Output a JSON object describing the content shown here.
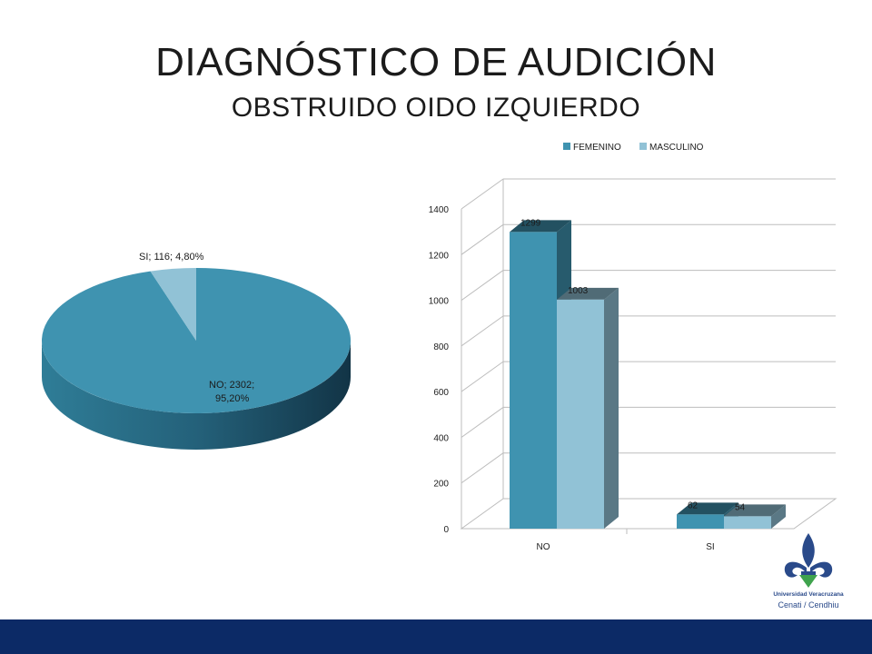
{
  "slide": {
    "title": "DIAGNÓSTICO DE AUDICIÓN",
    "subtitle": "OBSTRUIDO OIDO IZQUIERDO",
    "logo_text_1": "Universidad Veracruzana",
    "logo_text_2": "Cenati / Cendhiu"
  },
  "chart_data": [
    {
      "type": "pie",
      "slices": [
        {
          "label": "NO",
          "value": 2302,
          "percent": "95,20%",
          "color": "#3f93b0"
        },
        {
          "label": "SI",
          "value": 116,
          "percent": "4,80%",
          "color": "#91c2d6"
        }
      ],
      "data_labels": [
        "NO; 2302;",
        "95,20%",
        "SI; 116; 4,80%"
      ]
    },
    {
      "type": "bar",
      "categories": [
        "NO",
        "SI"
      ],
      "series": [
        {
          "name": "FEMENINO",
          "values": [
            1299,
            62
          ],
          "color": "#3f93b0"
        },
        {
          "name": "MASCULINO",
          "values": [
            1003,
            54
          ],
          "color": "#91c2d6"
        }
      ],
      "ylim": [
        0,
        1400
      ],
      "yticks": [
        0,
        200,
        400,
        600,
        800,
        1000,
        1200,
        1400
      ],
      "grid": true,
      "legend": "top"
    }
  ]
}
